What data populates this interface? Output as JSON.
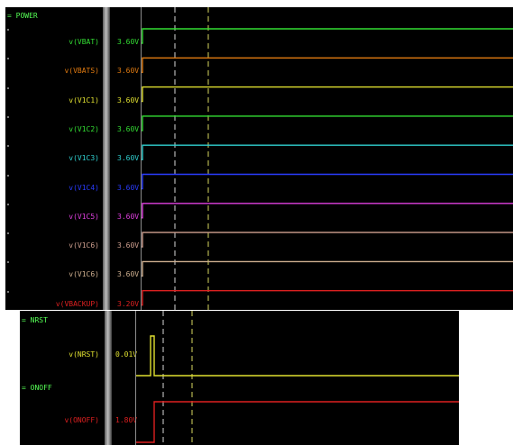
{
  "top_panel": {
    "group": "= POWER",
    "signals": [
      {
        "name": "v(VBAT)",
        "value": "3.60V",
        "color": "#33dd33"
      },
      {
        "name": "v(VBATS)",
        "value": "3.60V",
        "color": "#e07a10"
      },
      {
        "name": "v(V1C1)",
        "value": "3.60V",
        "color": "#e0e030"
      },
      {
        "name": "v(V1C2)",
        "value": "3.60V",
        "color": "#33dd33"
      },
      {
        "name": "v(V1C3)",
        "value": "3.60V",
        "color": "#30d0d0"
      },
      {
        "name": "v(V1C4)",
        "value": "3.60V",
        "color": "#2a3cff"
      },
      {
        "name": "v(V1C5)",
        "value": "3.60V",
        "color": "#e040e0"
      },
      {
        "name": "v(V1C6)",
        "value": "3.60V",
        "color": "#d0a090"
      },
      {
        "name": "v(V1C6)",
        "value": "3.60V",
        "color": "#d0b090"
      },
      {
        "name": "v(VBACKUP)",
        "value": "3.20V",
        "color": "#dd2020"
      }
    ]
  },
  "bottom_panel": {
    "groups": [
      {
        "label": "= NRST",
        "signal": {
          "name": "v(NRST)",
          "value": "0.01V",
          "color": "#e0e030"
        }
      },
      {
        "label": "= ONOFF",
        "signal": {
          "name": "v(ONOFF)",
          "value": "1.80V",
          "color": "#dd2020"
        }
      }
    ]
  },
  "colors": {
    "background": "#000000",
    "group_label": "#55ff55",
    "cursor_white": "#d8d8d8",
    "cursor_yellow": "#d8d860"
  }
}
